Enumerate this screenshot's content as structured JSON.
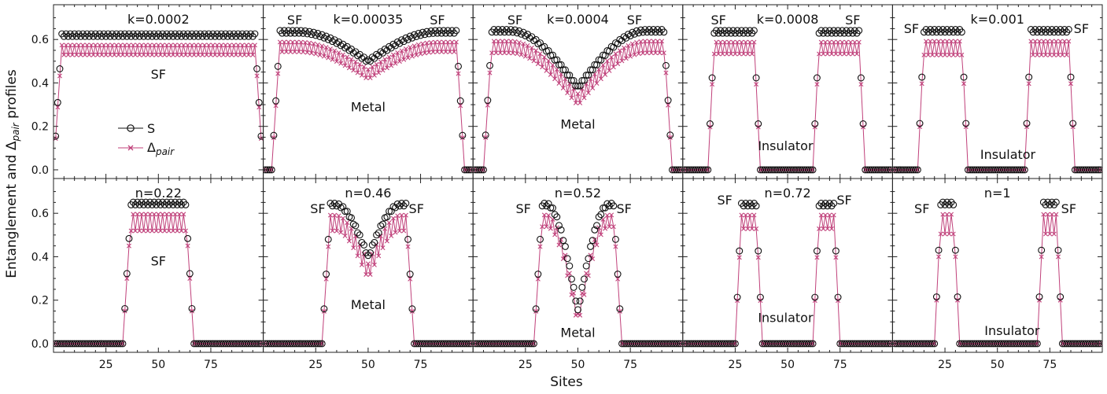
{
  "figure": {
    "ylabel": "Entanglement and Δpair profiles",
    "ylabel_main": "Entanglement and Δ",
    "ylabel_sub": "pair",
    "ylabel_tail": " profiles",
    "xlabel": "Sites",
    "legend": {
      "s_label": "S",
      "delta_label": "Δpair",
      "delta_main": "Δ",
      "delta_sub": "pair",
      "s_color": "#111111",
      "delta_color": "#c0407a"
    }
  },
  "chart_data": {
    "type": "line",
    "xlim": [
      0,
      100
    ],
    "ylim": [
      -0.04,
      0.76
    ],
    "xticks": [
      25,
      50,
      75
    ],
    "yticks": [
      0.0,
      0.2,
      0.4,
      0.6
    ],
    "xtick_labels": [
      "25",
      "50",
      "75"
    ],
    "ytick_labels": [
      "0.0",
      "0.2",
      "0.4",
      "0.6"
    ],
    "n_sites": 99,
    "panels": [
      {
        "id": "k0002",
        "row": 0,
        "col": 0,
        "title": "k=0.0002",
        "profile": "flat",
        "plateau": 0.62,
        "dip": 0.62,
        "osc": 0.05,
        "edges": [
          1,
          99
        ],
        "notes": [
          {
            "text": "SF",
            "x": 50,
            "y": 0.42
          }
        ]
      },
      {
        "id": "k00035",
        "row": 0,
        "col": 1,
        "title": "k=0.00035",
        "profile": "double",
        "plateau": 0.635,
        "dip": 0.5,
        "osc": 0.05,
        "edges": [
          5,
          95
        ],
        "notes": [
          {
            "text": "SF",
            "x": 15,
            "y": 0.67
          },
          {
            "text": "SF",
            "x": 83,
            "y": 0.67
          },
          {
            "text": "Metal",
            "x": 50,
            "y": 0.27
          }
        ]
      },
      {
        "id": "k0004",
        "row": 0,
        "col": 2,
        "title": "k=0.0004",
        "profile": "double",
        "plateau": 0.64,
        "dip": 0.38,
        "osc": 0.06,
        "edges": [
          6,
          94
        ],
        "notes": [
          {
            "text": "SF",
            "x": 20,
            "y": 0.67
          },
          {
            "text": "SF",
            "x": 77,
            "y": 0.67
          },
          {
            "text": "Metal",
            "x": 50,
            "y": 0.19
          }
        ]
      },
      {
        "id": "k0008",
        "row": 0,
        "col": 3,
        "title": "k=0.0008",
        "profile": "twin",
        "plateau": 0.635,
        "dip": 0.0,
        "osc": 0.06,
        "blocks": [
          [
            13,
            36
          ],
          [
            63,
            86
          ]
        ],
        "notes": [
          {
            "text": "SF",
            "x": 17,
            "y": 0.67
          },
          {
            "text": "SF",
            "x": 81,
            "y": 0.67
          },
          {
            "text": "Insulator",
            "x": 49,
            "y": 0.09
          }
        ]
      },
      {
        "id": "k001",
        "row": 0,
        "col": 4,
        "title": "k=0.001",
        "profile": "twin",
        "plateau": 0.64,
        "dip": 0.0,
        "osc": 0.07,
        "blocks": [
          [
            13,
            35
          ],
          [
            64,
            86
          ]
        ],
        "notes": [
          {
            "text": "SF",
            "x": 9,
            "y": 0.63
          },
          {
            "text": "SF",
            "x": 90,
            "y": 0.63
          },
          {
            "text": "Insulator",
            "x": 55,
            "y": 0.05
          }
        ]
      },
      {
        "id": "n022",
        "row": 1,
        "col": 0,
        "title": "n=0.22",
        "profile": "single",
        "plateau": 0.645,
        "dip": 0.645,
        "osc": 0.085,
        "edges": [
          34,
          66
        ],
        "notes": [
          {
            "text": "SF",
            "x": 50,
            "y": 0.36
          }
        ]
      },
      {
        "id": "n046",
        "row": 1,
        "col": 1,
        "title": "n=0.46",
        "profile": "double",
        "plateau": 0.64,
        "dip": 0.4,
        "osc": 0.08,
        "edges": [
          29,
          71
        ],
        "notes": [
          {
            "text": "SF",
            "x": 26,
            "y": 0.6
          },
          {
            "text": "SF",
            "x": 73,
            "y": 0.6
          },
          {
            "text": "Metal",
            "x": 50,
            "y": 0.16
          }
        ]
      },
      {
        "id": "n052",
        "row": 1,
        "col": 2,
        "title": "n=0.52",
        "profile": "double",
        "plateau": 0.64,
        "dip": 0.15,
        "osc": 0.06,
        "edges": [
          30,
          70
        ],
        "notes": [
          {
            "text": "SF",
            "x": 24,
            "y": 0.6
          },
          {
            "text": "SF",
            "x": 72,
            "y": 0.6
          },
          {
            "text": "Metal",
            "x": 50,
            "y": 0.03
          }
        ]
      },
      {
        "id": "n072",
        "row": 1,
        "col": 3,
        "title": "n=0.72",
        "profile": "twin",
        "plateau": 0.64,
        "dip": 0.0,
        "osc": 0.07,
        "blocks": [
          [
            26,
            37
          ],
          [
            63,
            74
          ]
        ],
        "notes": [
          {
            "text": "SF",
            "x": 20,
            "y": 0.64
          },
          {
            "text": "SF",
            "x": 77,
            "y": 0.64
          },
          {
            "text": "Insulator",
            "x": 49,
            "y": 0.1
          }
        ]
      },
      {
        "id": "n1",
        "row": 1,
        "col": 4,
        "title": "n=1",
        "profile": "twin",
        "plateau": 0.645,
        "dip": 0.0,
        "osc": 0.1,
        "blocks": [
          [
            21,
            31
          ],
          [
            70,
            80
          ]
        ],
        "notes": [
          {
            "text": "SF",
            "x": 14,
            "y": 0.6
          },
          {
            "text": "SF",
            "x": 84,
            "y": 0.6
          },
          {
            "text": "Insulator",
            "x": 57,
            "y": 0.04
          }
        ]
      }
    ]
  }
}
